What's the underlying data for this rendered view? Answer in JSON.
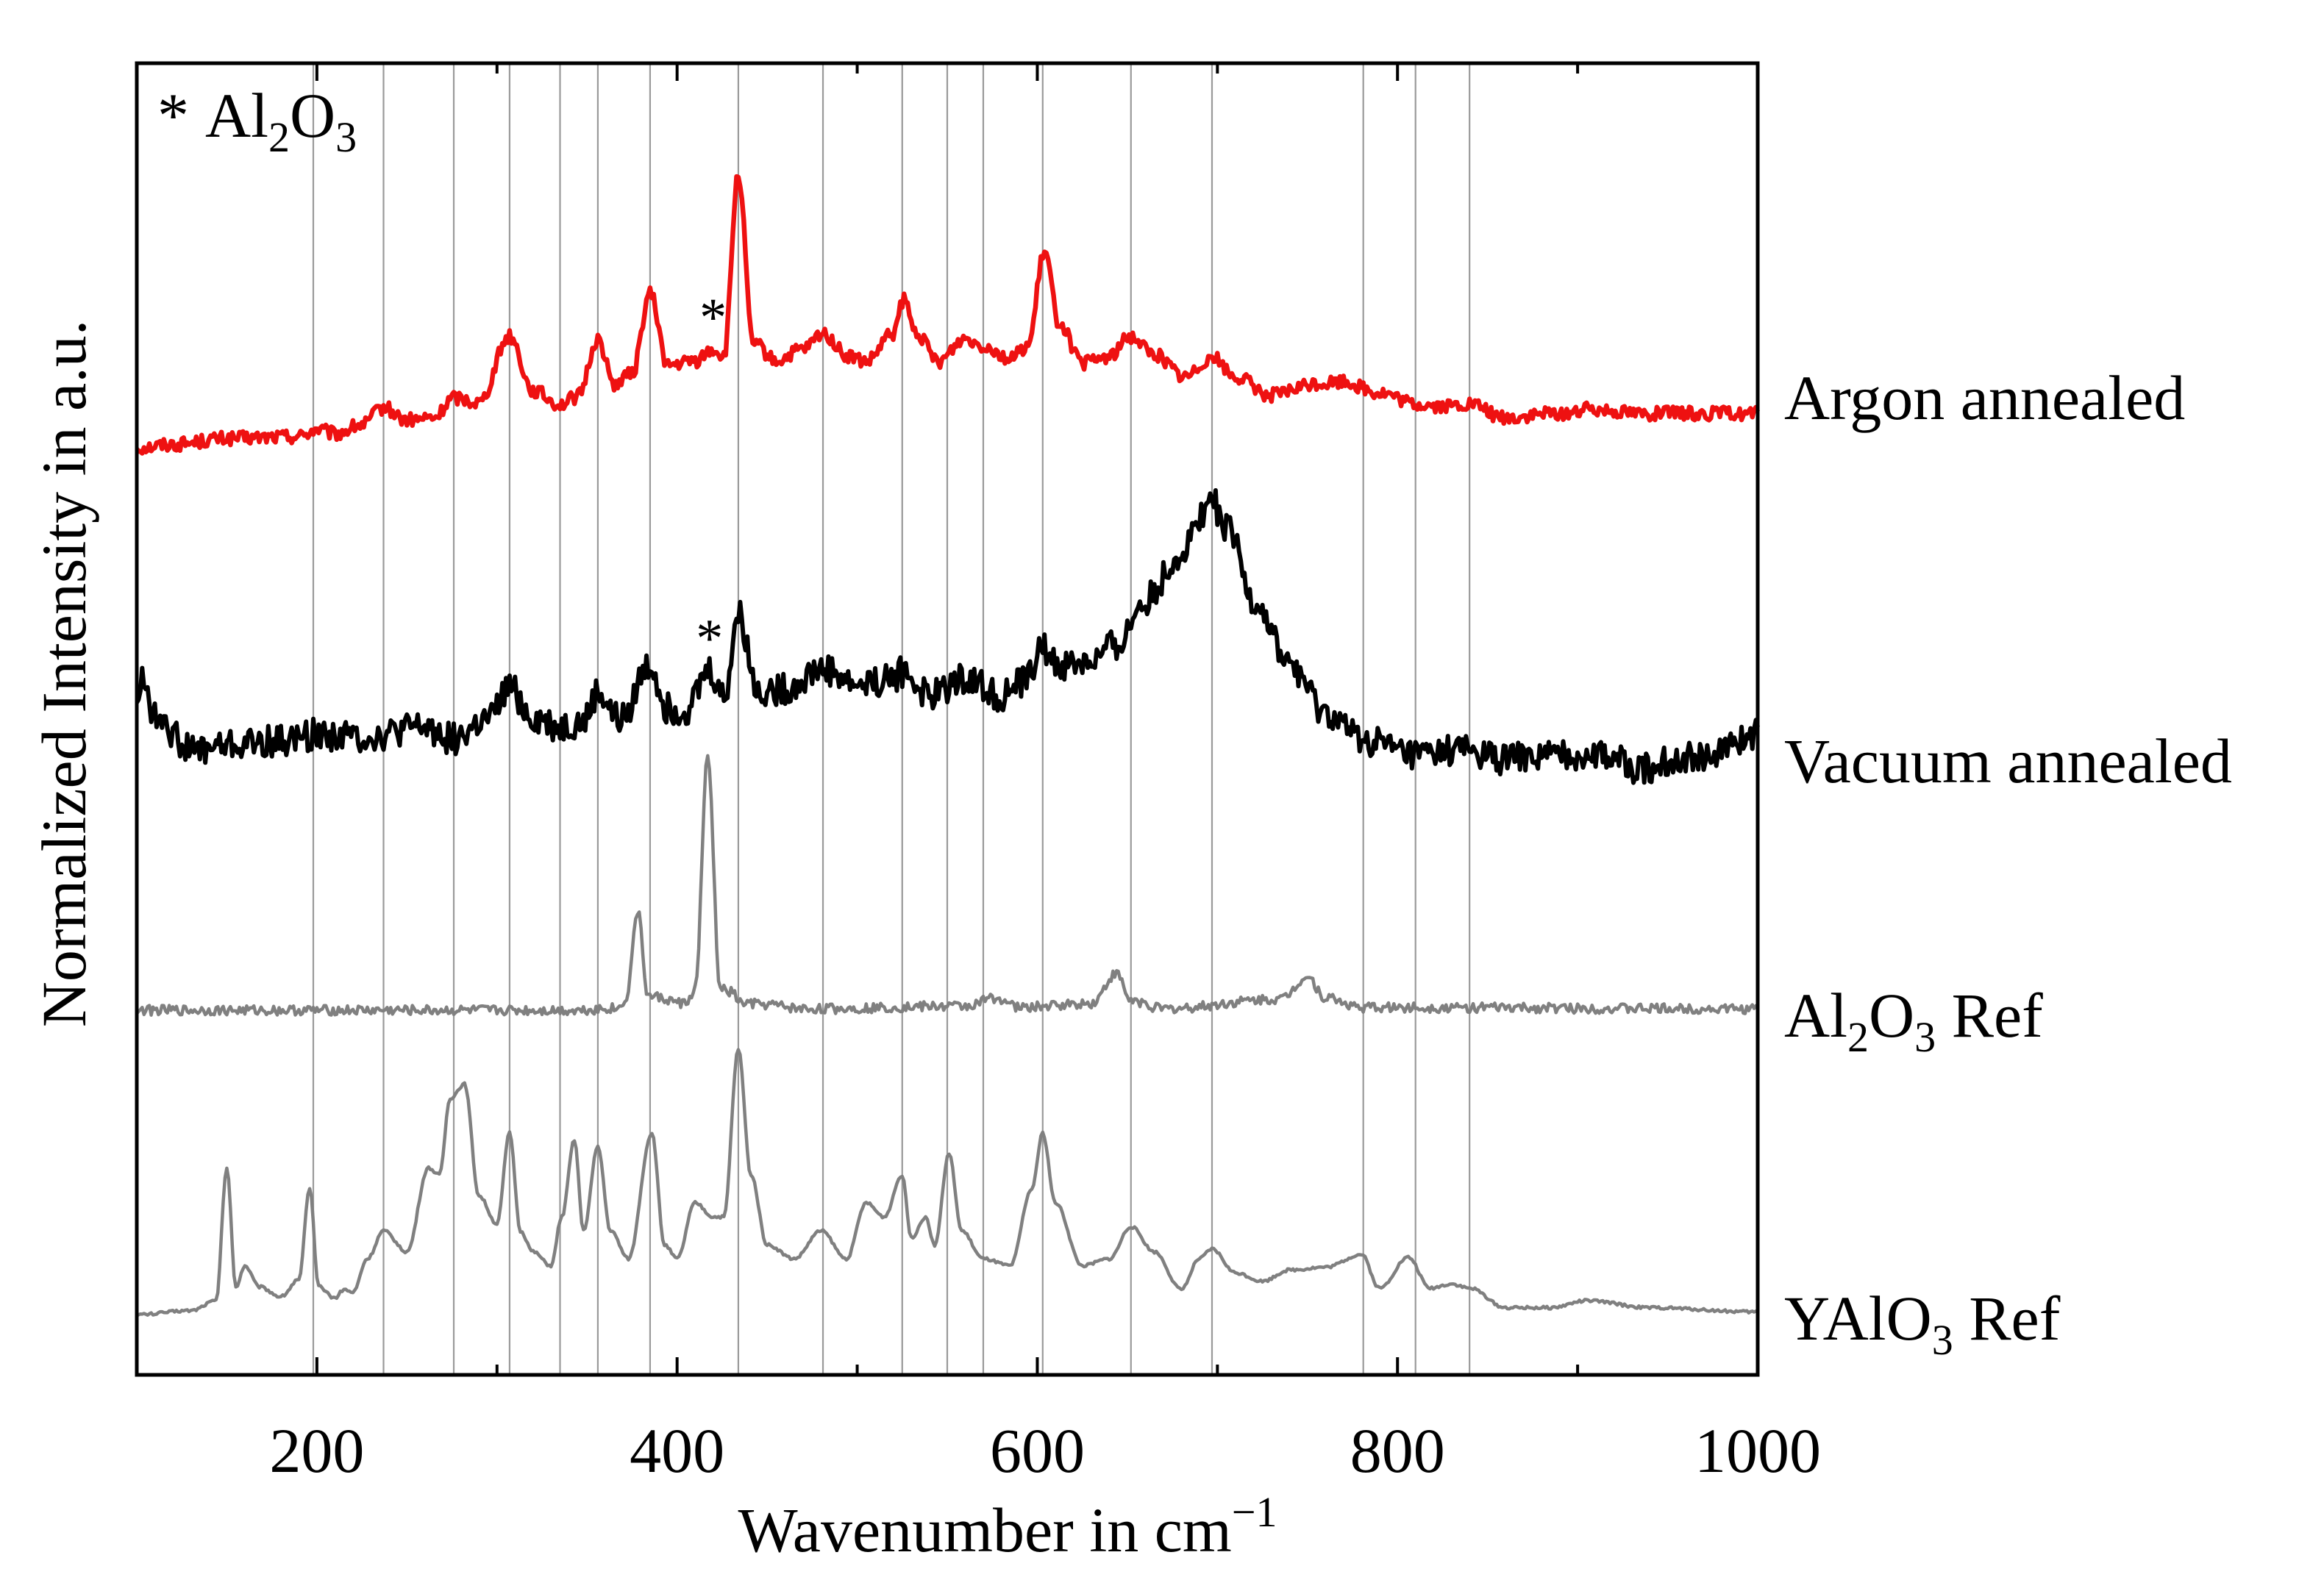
{
  "chart_data": {
    "type": "line",
    "title": "",
    "xlabel": "Wavenumber in cm",
    "xlabel_superscript": "−1",
    "ylabel": "Normalized Intensity in a.u.",
    "xlim": [
      100,
      1000
    ],
    "xticks": [
      200,
      400,
      600,
      800,
      1000
    ],
    "minor_xticks": [
      300,
      500,
      700,
      900
    ],
    "y_ticks_shown": false,
    "legend_note": {
      "marker": "*",
      "text": "Al2O3",
      "parts": [
        "Al",
        "2",
        "O",
        "3"
      ]
    },
    "reference_lines": [
      198,
      237,
      276,
      307,
      335,
      356,
      385,
      434,
      481,
      525,
      550,
      570,
      603,
      652,
      697,
      781,
      810,
      840
    ],
    "series": [
      {
        "name": "Argon annealed",
        "label_parts": [
          "Argon annealed"
        ],
        "color": "#ee1111",
        "baseline": 0.2,
        "noise": 0.6,
        "points": [
          [
            100,
            0
          ],
          [
            120,
            0.3
          ],
          [
            150,
            0.8
          ],
          [
            190,
            1.0
          ],
          [
            200,
            1.6
          ],
          [
            210,
            1.2
          ],
          [
            225,
            2.0
          ],
          [
            237,
            3.5
          ],
          [
            250,
            2.4
          ],
          [
            265,
            2.6
          ],
          [
            276,
            4.4
          ],
          [
            290,
            4.0
          ],
          [
            307,
            9.8
          ],
          [
            320,
            5.0
          ],
          [
            335,
            3.8
          ],
          [
            345,
            4.5
          ],
          [
            356,
            9.5
          ],
          [
            365,
            5.6
          ],
          [
            375,
            6.5
          ],
          [
            385,
            13.5
          ],
          [
            395,
            7.2
          ],
          [
            410,
            7.6
          ],
          [
            420,
            8.6
          ],
          [
            426,
            8.0
          ],
          [
            434,
            24.0
          ],
          [
            442,
            9.2
          ],
          [
            455,
            7.6
          ],
          [
            470,
            8.6
          ],
          [
            481,
            10.0
          ],
          [
            495,
            8.0
          ],
          [
            505,
            7.5
          ],
          [
            520,
            10.0
          ],
          [
            526,
            13.0
          ],
          [
            532,
            10.2
          ],
          [
            545,
            7.6
          ],
          [
            560,
            9.6
          ],
          [
            570,
            9.0
          ],
          [
            585,
            7.8
          ],
          [
            595,
            9.0
          ],
          [
            604,
            17.2
          ],
          [
            612,
            11.0
          ],
          [
            625,
            7.4
          ],
          [
            640,
            8.0
          ],
          [
            652,
            9.8
          ],
          [
            665,
            8.2
          ],
          [
            682,
            6.2
          ],
          [
            697,
            8.0
          ],
          [
            710,
            6.2
          ],
          [
            730,
            4.6
          ],
          [
            755,
            5.6
          ],
          [
            770,
            5.8
          ],
          [
            790,
            4.8
          ],
          [
            810,
            3.8
          ],
          [
            826,
            3.6
          ],
          [
            840,
            3.8
          ],
          [
            860,
            2.6
          ],
          [
            890,
            3.0
          ],
          [
            910,
            3.4
          ],
          [
            940,
            3.0
          ],
          [
            970,
            3.0
          ],
          [
            1000,
            3.0
          ]
        ]
      },
      {
        "name": "Vacuum annealed",
        "label_parts": [
          "Vacuum annealed"
        ],
        "color": "#000000",
        "baseline": 0.2,
        "noise": 1.4,
        "points": [
          [
            100,
            5.6
          ],
          [
            104,
            7.0
          ],
          [
            110,
            3.6
          ],
          [
            116,
            4.0
          ],
          [
            120,
            2.0
          ],
          [
            130,
            0.8
          ],
          [
            150,
            1.2
          ],
          [
            180,
            1.6
          ],
          [
            200,
            2.2
          ],
          [
            230,
            2.0
          ],
          [
            260,
            2.8
          ],
          [
            276,
            1.8
          ],
          [
            295,
            3.4
          ],
          [
            307,
            6.2
          ],
          [
            320,
            3.6
          ],
          [
            335,
            2.8
          ],
          [
            348,
            3.2
          ],
          [
            356,
            5.8
          ],
          [
            368,
            3.4
          ],
          [
            385,
            8.2
          ],
          [
            395,
            4.4
          ],
          [
            405,
            4.4
          ],
          [
            418,
            7.8
          ],
          [
            426,
            5.4
          ],
          [
            434,
            12.6
          ],
          [
            445,
            6.0
          ],
          [
            460,
            6.2
          ],
          [
            481,
            8.0
          ],
          [
            500,
            6.6
          ],
          [
            515,
            7.0
          ],
          [
            526,
            7.6
          ],
          [
            540,
            5.6
          ],
          [
            560,
            7.2
          ],
          [
            580,
            5.6
          ],
          [
            592,
            6.8
          ],
          [
            603,
            9.6
          ],
          [
            612,
            8.2
          ],
          [
            630,
            8.6
          ],
          [
            645,
            10.2
          ],
          [
            660,
            14.0
          ],
          [
            680,
            18.0
          ],
          [
            692,
            21.8
          ],
          [
            697,
            22.6
          ],
          [
            706,
            20.0
          ],
          [
            720,
            14.0
          ],
          [
            740,
            8.4
          ],
          [
            760,
            4.0
          ],
          [
            780,
            1.8
          ],
          [
            810,
            0.4
          ],
          [
            840,
            0.8
          ],
          [
            860,
            0
          ],
          [
            880,
            0.3
          ],
          [
            910,
            0.5
          ],
          [
            935,
            -0.8
          ],
          [
            960,
            0.2
          ],
          [
            980,
            0.6
          ],
          [
            994,
            1.8
          ],
          [
            1000,
            2.4
          ]
        ]
      },
      {
        "name": "Al2O3 Ref",
        "label_parts": [
          "Al",
          "2",
          "O",
          "3",
          " Ref"
        ],
        "color": "#808080",
        "baseline": 0.2,
        "noise": 0.7,
        "points": [
          [
            100,
            0
          ],
          [
            340,
            0
          ],
          [
            368,
            0.3
          ],
          [
            372,
            2.0
          ],
          [
            378,
            14.2
          ],
          [
            384,
            2.0
          ],
          [
            405,
            1.0
          ],
          [
            410,
            3.0
          ],
          [
            417,
            36.0
          ],
          [
            424,
            3.0
          ],
          [
            430,
            2.6
          ],
          [
            436,
            1.0
          ],
          [
            450,
            0.8
          ],
          [
            470,
            0.2
          ],
          [
            560,
            0.6
          ],
          [
            577,
            1.8
          ],
          [
            590,
            0.4
          ],
          [
            630,
            1.0
          ],
          [
            644,
            5.2
          ],
          [
            652,
            1.4
          ],
          [
            670,
            0.2
          ],
          [
            735,
            1.6
          ],
          [
            750,
            4.8
          ],
          [
            760,
            1.8
          ],
          [
            780,
            0.4
          ],
          [
            1000,
            0.2
          ]
        ]
      },
      {
        "name": "YAlO3 Ref",
        "label_parts": [
          "YAl",
          "O",
          "3",
          " Ref"
        ],
        "color": "#808080",
        "baseline": 0.2,
        "noise": 0.2,
        "points": [
          [
            100,
            0
          ],
          [
            130,
            0.6
          ],
          [
            144,
            2.0
          ],
          [
            150,
            21.0
          ],
          [
            155,
            4.0
          ],
          [
            160,
            7.0
          ],
          [
            168,
            4.0
          ],
          [
            180,
            2.6
          ],
          [
            190,
            5.0
          ],
          [
            196,
            18.0
          ],
          [
            201,
            4.0
          ],
          [
            210,
            2.4
          ],
          [
            215,
            3.6
          ],
          [
            220,
            3.2
          ],
          [
            228,
            8.0
          ],
          [
            237,
            12.0
          ],
          [
            250,
            9.0
          ],
          [
            262,
            21.0
          ],
          [
            268,
            20.0
          ],
          [
            274,
            31.0
          ],
          [
            282,
            33.0
          ],
          [
            290,
            17.0
          ],
          [
            300,
            13.0
          ],
          [
            307,
            26.0
          ],
          [
            313,
            12.0
          ],
          [
            320,
            9.0
          ],
          [
            330,
            7.0
          ],
          [
            336,
            14.0
          ],
          [
            343,
            25.0
          ],
          [
            348,
            12.0
          ],
          [
            356,
            24.0
          ],
          [
            363,
            12.0
          ],
          [
            373,
            8.0
          ],
          [
            386,
            26.0
          ],
          [
            393,
            10.0
          ],
          [
            400,
            8.0
          ],
          [
            410,
            16.0
          ],
          [
            420,
            14.0
          ],
          [
            426,
            14.0
          ],
          [
            434,
            38.0
          ],
          [
            441,
            20.0
          ],
          [
            450,
            10.0
          ],
          [
            465,
            8.0
          ],
          [
            480,
            12.0
          ],
          [
            494,
            8.0
          ],
          [
            505,
            16.0
          ],
          [
            515,
            14.0
          ],
          [
            525,
            20.0
          ],
          [
            530,
            11.0
          ],
          [
            538,
            14.0
          ],
          [
            543,
            10.0
          ],
          [
            551,
            23.0
          ],
          [
            558,
            12.0
          ],
          [
            570,
            8.0
          ],
          [
            585,
            7.0
          ],
          [
            597,
            18.0
          ],
          [
            603,
            26.0
          ],
          [
            610,
            16.0
          ],
          [
            625,
            7.0
          ],
          [
            640,
            8.0
          ],
          [
            652,
            12.6
          ],
          [
            665,
            9.0
          ],
          [
            680,
            3.6
          ],
          [
            690,
            8.0
          ],
          [
            697,
            9.4
          ],
          [
            710,
            6.0
          ],
          [
            725,
            4.8
          ],
          [
            740,
            6.4
          ],
          [
            760,
            6.8
          ],
          [
            780,
            8.6
          ],
          [
            790,
            3.8
          ],
          [
            806,
            8.2
          ],
          [
            818,
            3.8
          ],
          [
            830,
            4.4
          ],
          [
            840,
            3.8
          ],
          [
            860,
            1.0
          ],
          [
            885,
            1.0
          ],
          [
            905,
            2.0
          ],
          [
            940,
            1.0
          ],
          [
            1000,
            0.4
          ]
        ]
      }
    ],
    "asterisk_annotations": [
      {
        "series": "Argon annealed",
        "x": 420,
        "text": "*"
      },
      {
        "series": "Vacuum annealed",
        "x": 418,
        "text": "*"
      }
    ]
  }
}
